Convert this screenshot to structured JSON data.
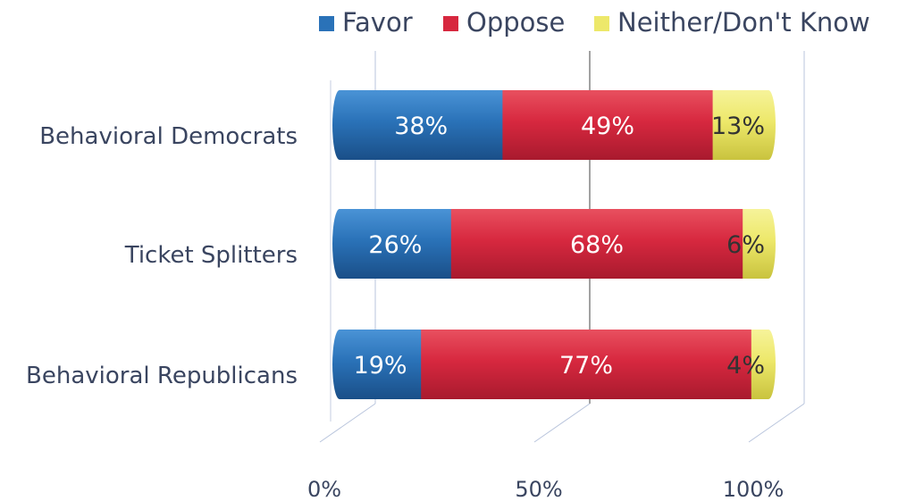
{
  "chart_data": {
    "type": "bar",
    "orientation": "horizontal",
    "stacked": true,
    "percent_stacked": true,
    "three_d": true,
    "categories": [
      "Behavioral Democrats",
      "Ticket Splitters",
      "Behavioral Republicans"
    ],
    "series": [
      {
        "name": "Favor",
        "values": [
          38,
          26,
          19
        ],
        "labels": [
          "38%",
          "26%",
          "19%"
        ]
      },
      {
        "name": "Oppose",
        "values": [
          49,
          68,
          77
        ],
        "labels": [
          "49%",
          "68%",
          "77%"
        ]
      },
      {
        "name": "Neither/Don't Know",
        "values": [
          13,
          6,
          4
        ],
        "labels": [
          "13%",
          "6%",
          "4%"
        ]
      }
    ],
    "x_ticks": [
      "0%",
      "50%",
      "100%"
    ],
    "xlim": [
      0,
      100
    ],
    "grid": true,
    "legend_position": "top",
    "colors": {
      "Favor": "#2a72b8",
      "Oppose": "#d7283f",
      "Neither/Don't Know": "#ede86a"
    }
  }
}
